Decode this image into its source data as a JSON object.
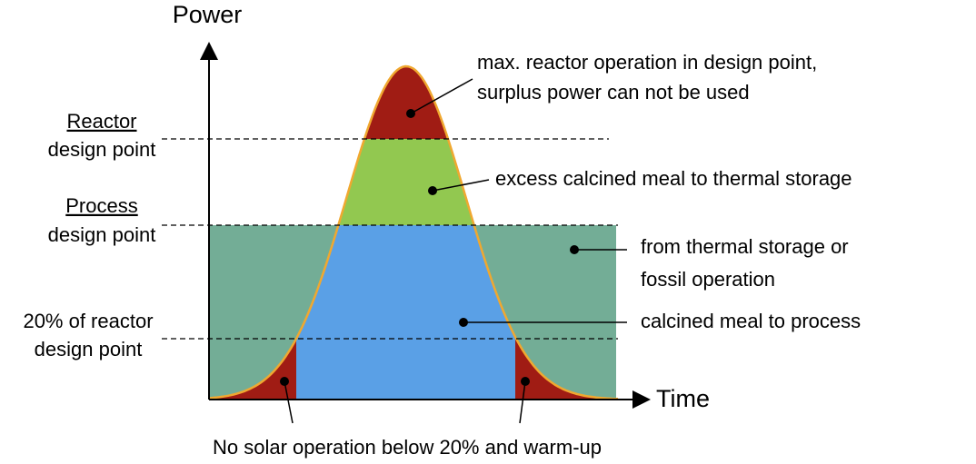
{
  "axes": {
    "y_label": "Power",
    "x_label": "Time"
  },
  "levels": [
    {
      "lines": [
        "Reactor",
        "design point"
      ]
    },
    {
      "lines": [
        "Process",
        "design point"
      ]
    },
    {
      "lines": [
        "20% of reactor",
        "design point"
      ]
    }
  ],
  "annotations": [
    {
      "lines": [
        "max. reactor operation in design point,",
        "surplus power can not be used"
      ]
    },
    {
      "lines": [
        "excess calcined meal to thermal storage"
      ]
    },
    {
      "lines": [
        "from thermal storage or",
        "fossil operation"
      ]
    },
    {
      "lines": [
        "calcined meal to process"
      ]
    },
    {
      "lines": [
        "No solar operation below 20% and warm-up"
      ]
    }
  ]
}
